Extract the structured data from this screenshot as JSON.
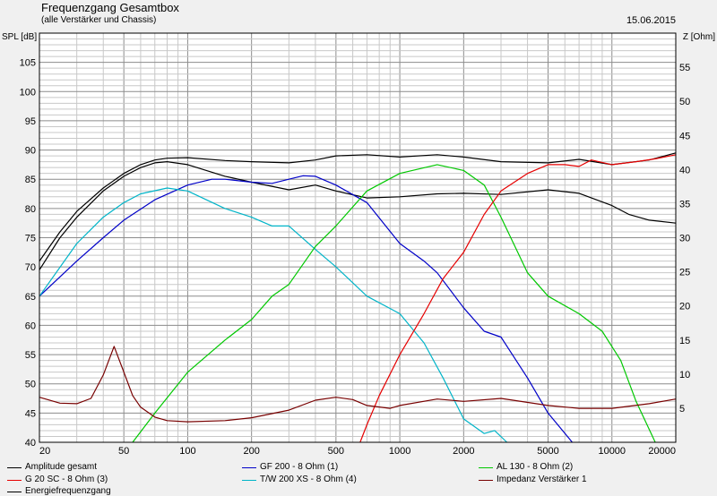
{
  "title": "Frequenzgang Gesamtbox",
  "subtitle": "(alle Verstärker und Chassis)",
  "date": "15.06.2015",
  "chart_data": {
    "type": "line",
    "ylabel": "SPL [dB]",
    "y2label": "Z [Ohm]",
    "x_scale": "log",
    "xlim": [
      20,
      20000
    ],
    "ylim": [
      40,
      110
    ],
    "y2lim": [
      0,
      60
    ],
    "x_ticks": [
      20,
      50,
      100,
      200,
      500,
      1000,
      2000,
      5000,
      10000,
      20000
    ],
    "x_tick_labels": [
      "20",
      "50",
      "100",
      "200",
      "500",
      "1000",
      "2000",
      "5000",
      "10000",
      "20000"
    ],
    "y_ticks": [
      40,
      45,
      50,
      55,
      60,
      65,
      70,
      75,
      80,
      85,
      90,
      95,
      100,
      105
    ],
    "y2_ticks": [
      5,
      10,
      15,
      20,
      25,
      30,
      35,
      40,
      45,
      50,
      55
    ],
    "grid": true,
    "series": [
      {
        "name": "Amplitude gesamt",
        "color": "#000000",
        "x": [
          20,
          25,
          30,
          40,
          50,
          60,
          70,
          80,
          100,
          150,
          200,
          300,
          400,
          500,
          700,
          1000,
          1500,
          2000,
          3000,
          5000,
          7000,
          10000,
          15000,
          20000
        ],
        "y": [
          71,
          76,
          79.5,
          83.5,
          86,
          87.5,
          88.3,
          88.6,
          88.7,
          88.2,
          88,
          87.8,
          88.3,
          89,
          89.2,
          88.8,
          89.2,
          88.8,
          88,
          87.8,
          88.4,
          87.5,
          88.3,
          89.5
        ]
      },
      {
        "name": "Energiefrequenzgang",
        "color": "#000000",
        "x": [
          20,
          25,
          30,
          40,
          50,
          60,
          70,
          80,
          100,
          150,
          200,
          300,
          400,
          500,
          700,
          1000,
          1500,
          2000,
          3000,
          5000,
          7000,
          10000,
          12000,
          15000,
          20000
        ],
        "y": [
          69.5,
          75,
          78.5,
          83,
          85.5,
          87,
          87.8,
          88,
          87.5,
          85.5,
          84.5,
          83.2,
          84,
          83,
          81.8,
          82,
          82.5,
          82.6,
          82.4,
          83.2,
          82.6,
          80.5,
          79,
          78,
          77.5
        ]
      },
      {
        "name": "GF 200 - 8 Ohm (1)",
        "color": "#0000c8",
        "x": [
          20,
          30,
          40,
          50,
          70,
          100,
          130,
          150,
          200,
          250,
          300,
          350,
          400,
          500,
          700,
          1000,
          1300,
          1500,
          2000,
          2500,
          3000,
          4000,
          5000,
          6500
        ],
        "y": [
          65,
          71,
          75,
          78,
          81.5,
          84,
          85,
          85,
          84.5,
          84.3,
          85,
          85.6,
          85.5,
          84,
          81,
          74,
          71,
          69,
          63,
          59,
          58,
          51,
          45,
          40
        ]
      },
      {
        "name": "T/W 200 XS - 8 Ohm (4)",
        "color": "#00b4c8",
        "x": [
          20,
          30,
          40,
          50,
          60,
          80,
          100,
          150,
          200,
          250,
          300,
          400,
          500,
          700,
          1000,
          1300,
          1600,
          2000,
          2500,
          2800,
          3200
        ],
        "y": [
          65,
          74,
          78.5,
          81,
          82.5,
          83.5,
          83,
          80,
          78.5,
          77,
          77,
          73,
          70,
          65,
          62,
          57,
          51,
          44,
          41.5,
          42,
          40
        ]
      },
      {
        "name": "AL 130 - 8 Ohm (2)",
        "color": "#00c800",
        "x": [
          55,
          70,
          100,
          150,
          200,
          250,
          300,
          400,
          500,
          700,
          1000,
          1500,
          2000,
          2500,
          3000,
          4000,
          5000,
          7000,
          9000,
          11000,
          13000,
          16000
        ],
        "y": [
          40,
          45,
          52,
          57.5,
          61,
          65,
          67,
          73.5,
          77,
          83,
          86,
          87.5,
          86.5,
          84,
          78.5,
          69,
          65,
          62,
          59,
          54,
          47,
          40
        ]
      },
      {
        "name": "G 20 SC - 8 Ohm (3)",
        "color": "#e60000",
        "x": [
          650,
          700,
          800,
          1000,
          1300,
          1600,
          2000,
          2500,
          3000,
          4000,
          5000,
          6000,
          7000,
          8000,
          10000,
          13000,
          16000,
          20000
        ],
        "y": [
          40,
          43,
          48,
          55,
          62,
          68,
          72.5,
          79,
          83,
          86,
          87.5,
          87.5,
          87.2,
          88.3,
          87.5,
          88,
          88.5,
          89.2
        ]
      },
      {
        "name": "Impedanz Verstärker 1",
        "color": "#780000",
        "x": [
          20,
          25,
          30,
          35,
          40,
          45,
          50,
          55,
          60,
          70,
          80,
          100,
          150,
          200,
          300,
          400,
          500,
          600,
          700,
          900,
          1000,
          1500,
          2000,
          3000,
          5000,
          7000,
          10000,
          15000,
          20000
        ],
        "y": [
          47.7,
          46.7,
          46.6,
          47.5,
          51.5,
          56.4,
          52,
          48,
          46,
          44.3,
          43.7,
          43.5,
          43.7,
          44.2,
          45.5,
          47.2,
          47.7,
          47.3,
          46.3,
          45.8,
          46.3,
          47.4,
          47,
          47.5,
          46.3,
          45.8,
          45.8,
          46.6,
          47.4
        ]
      }
    ]
  }
}
